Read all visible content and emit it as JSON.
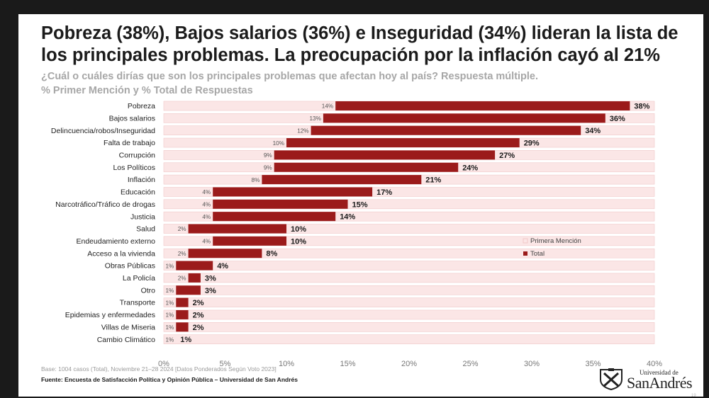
{
  "slide": {
    "title": "Pobreza (38%), Bajos salarios (36%) e Inseguridad (34%) lideran la lista de los principales problemas. La preocupación por la inflación cayó al 21%",
    "subtitle_line1": "¿Cuál o cuáles dirías que son los principales problemas que afectan hoy al país? Respuesta múltiple.",
    "subtitle_line2": "% Primer Mención y % Total de Respuestas",
    "base_note": "Base: 1004 casos (Total), Noviembre 21–28 2024 [Datos Ponderados Según Voto 2023]",
    "source": "Fuente: Encuesta de Satisfacción Política y Opinión Pública – Universidad de San Andrés",
    "logo_small": "Universidad de",
    "logo_name": "SanAndrés",
    "page_number": "19"
  },
  "colors": {
    "total": "#9b1b1b",
    "primera": "#fbe6e6",
    "primera_border": "#f0c8c8"
  },
  "chart_data": {
    "type": "bar",
    "orientation": "horizontal",
    "categories": [
      "Pobreza",
      "Bajos salarios",
      "Delincuencia/robos/Inseguridad",
      "Falta de trabajo",
      "Corrupción",
      "Los Políticos",
      "Inflación",
      "Educación",
      "Narcotráfico/Tráfico de drogas",
      "Justicia",
      "Salud",
      "Endeudamiento externo",
      "Acceso a la vivienda",
      "Obras Públicas",
      "La Policía",
      "Otro",
      "Transporte",
      "Epidemias y enfermedades",
      "Villas de Miseria",
      "Cambio Climático"
    ],
    "series": [
      {
        "name": "Primera Mención",
        "values": [
          14,
          13,
          12,
          10,
          9,
          9,
          8,
          4,
          4,
          4,
          2,
          4,
          2,
          1,
          2,
          1,
          1,
          1,
          1,
          1
        ],
        "labels": [
          "14%",
          "13%",
          "12%",
          "10%",
          "9%",
          "9%",
          "8%",
          "4%",
          "4%",
          "4%",
          "2%",
          "4%",
          "2%",
          "1%",
          "2%",
          "1%",
          "1%",
          "1%",
          "1%",
          "1%"
        ]
      },
      {
        "name": "Total",
        "values": [
          38,
          36,
          34,
          29,
          27,
          24,
          21,
          17,
          15,
          14,
          10,
          10,
          8,
          4,
          3,
          3,
          2,
          2,
          2,
          1
        ],
        "labels": [
          "38%",
          "36%",
          "34%",
          "29%",
          "27%",
          "24%",
          "21%",
          "17%",
          "15%",
          "14%",
          "10%",
          "10%",
          "8%",
          "4%",
          "3%",
          "3%",
          "2%",
          "2%",
          "2%",
          "1%"
        ]
      }
    ],
    "xlim": [
      0,
      40
    ],
    "xticks": [
      0,
      5,
      10,
      15,
      20,
      25,
      30,
      35,
      40
    ],
    "xtick_labels": [
      "0%",
      "5%",
      "10%",
      "15%",
      "20%",
      "25%",
      "30%",
      "35%",
      "40%"
    ],
    "background_bar_value": 40,
    "legend": [
      "Primera Mención",
      "Total"
    ],
    "legend_position": "right"
  }
}
